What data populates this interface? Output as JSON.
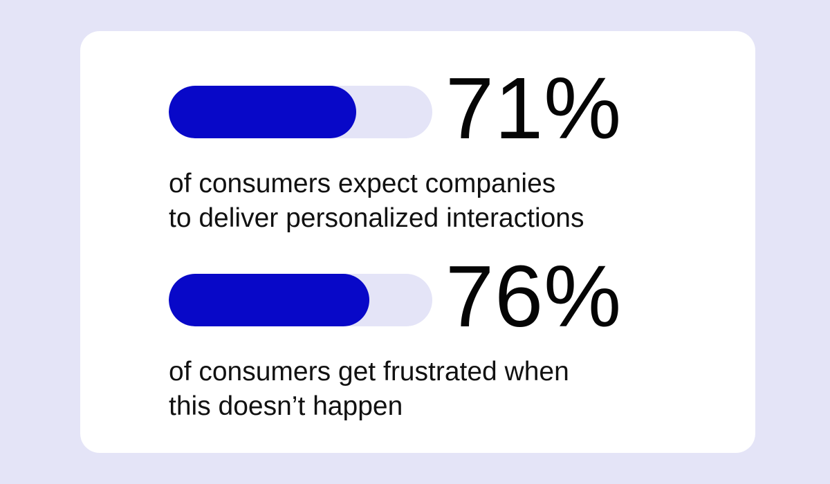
{
  "colors": {
    "background": "#e4e4f7",
    "card": "#ffffff",
    "bar_fill": "#0808c8",
    "bar_track": "#e4e4f7",
    "text": "#050505"
  },
  "stats": [
    {
      "percent_label": "71%",
      "fill_fraction": 0.71,
      "caption_line1": "of consumers expect companies",
      "caption_line2": "to deliver personalized interactions"
    },
    {
      "percent_label": "76%",
      "fill_fraction": 0.76,
      "caption_line1": "of consumers get frustrated when",
      "caption_line2": "this doesn’t happen"
    }
  ]
}
